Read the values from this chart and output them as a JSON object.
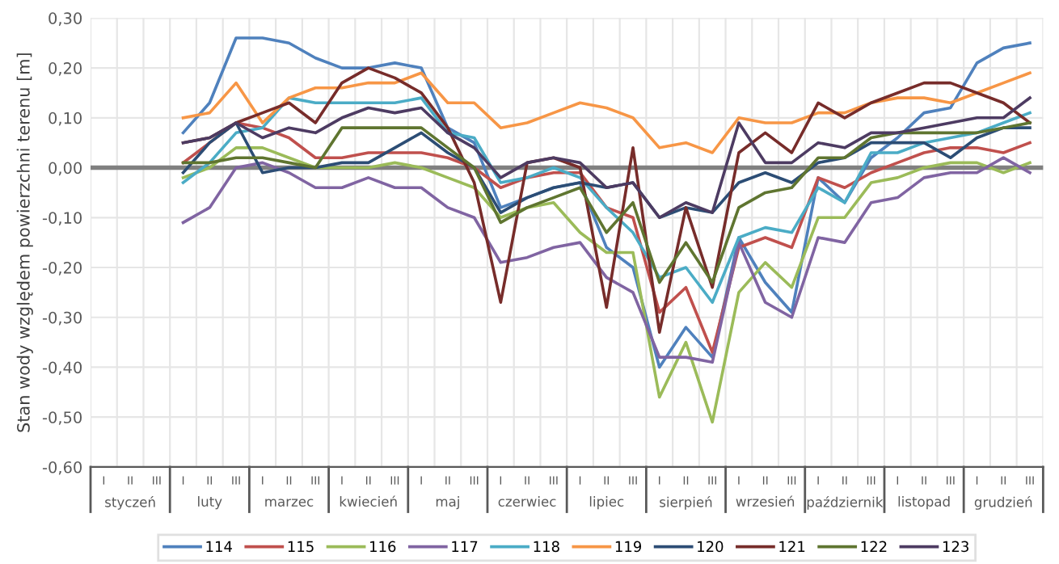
{
  "chart_data": {
    "type": "line",
    "ylabel": "Stan wody względem powierzchni terenu [m]",
    "categories": [
      "I",
      "II",
      "III",
      "I",
      "II",
      "III",
      "I",
      "II",
      "III",
      "I",
      "II",
      "III",
      "I",
      "II",
      "III",
      "I",
      "II",
      "III",
      "I",
      "II",
      "III",
      "I",
      "II",
      "III",
      "I",
      "II",
      "III",
      "I",
      "II",
      "III",
      "I",
      "II",
      "III",
      "I",
      "II",
      "III"
    ],
    "annotations": [
      "styczeń",
      "luty",
      "marzec",
      "kwiecień",
      "maj",
      "czerwiec",
      "lipiec",
      "sierpień",
      "wrzesień",
      "październik",
      "listopad",
      "grudzień"
    ],
    "series": [
      {
        "name": "114",
        "color": "#4f81bd",
        "values": [
          null,
          null,
          null,
          0.07,
          0.13,
          0.26,
          0.26,
          0.25,
          0.22,
          0.2,
          0.2,
          0.21,
          0.2,
          0.08,
          0.05,
          -0.08,
          -0.06,
          -0.04,
          -0.03,
          -0.16,
          -0.2,
          -0.4,
          -0.32,
          -0.38,
          -0.14,
          -0.23,
          -0.29,
          -0.02,
          -0.07,
          0.02,
          0.06,
          0.11,
          0.12,
          0.21,
          0.24,
          0.25
        ]
      },
      {
        "name": "115",
        "color": "#c0504d",
        "values": [
          null,
          null,
          null,
          0.01,
          0.05,
          0.09,
          0.08,
          0.06,
          0.02,
          0.02,
          0.03,
          0.03,
          0.03,
          0.02,
          0.0,
          -0.04,
          -0.02,
          -0.01,
          -0.01,
          -0.08,
          -0.1,
          -0.29,
          -0.24,
          -0.37,
          -0.16,
          -0.14,
          -0.16,
          -0.02,
          -0.04,
          -0.01,
          0.01,
          0.03,
          0.04,
          0.04,
          0.03,
          0.05
        ]
      },
      {
        "name": "116",
        "color": "#9bbb59",
        "values": [
          null,
          null,
          null,
          -0.02,
          0.0,
          0.04,
          0.04,
          0.02,
          0.0,
          0.0,
          0.0,
          0.01,
          0.0,
          -0.02,
          -0.04,
          -0.1,
          -0.08,
          -0.07,
          -0.13,
          -0.17,
          -0.17,
          -0.46,
          -0.35,
          -0.51,
          -0.25,
          -0.19,
          -0.24,
          -0.1,
          -0.1,
          -0.03,
          -0.02,
          0.0,
          0.01,
          0.01,
          -0.01,
          0.01
        ]
      },
      {
        "name": "117",
        "color": "#8064a2",
        "values": [
          null,
          null,
          null,
          -0.11,
          -0.08,
          0.0,
          0.01,
          -0.01,
          -0.04,
          -0.04,
          -0.02,
          -0.04,
          -0.04,
          -0.08,
          -0.1,
          -0.19,
          -0.18,
          -0.16,
          -0.15,
          -0.22,
          -0.25,
          -0.38,
          -0.38,
          -0.39,
          -0.15,
          -0.27,
          -0.3,
          -0.14,
          -0.15,
          -0.07,
          -0.06,
          -0.02,
          -0.01,
          -0.01,
          0.02,
          -0.01
        ]
      },
      {
        "name": "118",
        "color": "#4bacc6",
        "values": [
          null,
          null,
          null,
          -0.03,
          0.01,
          0.07,
          0.08,
          0.14,
          0.13,
          0.13,
          0.13,
          0.13,
          0.14,
          0.07,
          0.06,
          -0.03,
          -0.02,
          0.0,
          -0.02,
          -0.08,
          -0.13,
          -0.22,
          -0.2,
          -0.27,
          -0.14,
          -0.12,
          -0.13,
          -0.04,
          -0.07,
          0.03,
          0.03,
          0.05,
          0.06,
          0.07,
          0.09,
          0.11
        ]
      },
      {
        "name": "119",
        "color": "#f79646",
        "values": [
          null,
          null,
          null,
          0.1,
          0.11,
          0.17,
          0.09,
          0.14,
          0.16,
          0.16,
          0.17,
          0.17,
          0.19,
          0.13,
          0.13,
          0.08,
          0.09,
          0.11,
          0.13,
          0.12,
          0.1,
          0.04,
          0.05,
          0.03,
          0.1,
          0.09,
          0.09,
          0.11,
          0.11,
          0.13,
          0.14,
          0.14,
          0.13,
          0.15,
          0.17,
          0.19
        ]
      },
      {
        "name": "120",
        "color": "#2c4d75",
        "values": [
          null,
          null,
          null,
          -0.01,
          0.05,
          0.09,
          -0.01,
          0.0,
          0.0,
          0.01,
          0.01,
          0.04,
          0.07,
          0.03,
          0.0,
          -0.09,
          -0.06,
          -0.04,
          -0.03,
          -0.04,
          -0.03,
          -0.1,
          -0.08,
          -0.09,
          -0.03,
          -0.01,
          -0.03,
          0.01,
          0.02,
          0.05,
          0.05,
          0.05,
          0.02,
          0.06,
          0.08,
          0.08
        ]
      },
      {
        "name": "121",
        "color": "#772c2a",
        "values": [
          null,
          null,
          null,
          0.05,
          0.06,
          0.09,
          0.11,
          0.13,
          0.09,
          0.17,
          0.2,
          0.18,
          0.15,
          0.08,
          -0.03,
          -0.27,
          0.01,
          0.02,
          0.0,
          -0.28,
          0.04,
          -0.33,
          -0.08,
          -0.24,
          0.03,
          0.07,
          0.03,
          0.13,
          0.1,
          0.13,
          0.15,
          0.17,
          0.17,
          0.15,
          0.13,
          0.09
        ]
      },
      {
        "name": "122",
        "color": "#5f7530",
        "values": [
          null,
          null,
          null,
          0.01,
          0.01,
          0.02,
          0.02,
          0.01,
          0.0,
          0.08,
          0.08,
          0.08,
          0.08,
          0.04,
          0.0,
          -0.11,
          -0.08,
          -0.06,
          -0.04,
          -0.13,
          -0.07,
          -0.23,
          -0.15,
          -0.23,
          -0.08,
          -0.05,
          -0.04,
          0.02,
          0.02,
          0.06,
          0.07,
          0.07,
          0.07,
          0.07,
          0.08,
          0.09
        ]
      },
      {
        "name": "123",
        "color": "#4d3b62",
        "values": [
          null,
          null,
          null,
          0.05,
          0.06,
          0.09,
          0.06,
          0.08,
          0.07,
          0.1,
          0.12,
          0.11,
          0.12,
          0.07,
          0.04,
          -0.02,
          0.01,
          0.02,
          0.01,
          -0.04,
          -0.03,
          -0.1,
          -0.07,
          -0.09,
          0.09,
          0.01,
          0.01,
          0.05,
          0.04,
          0.07,
          0.07,
          0.08,
          0.09,
          0.1,
          0.1,
          0.14
        ]
      }
    ],
    "ylim": [
      -0.6,
      0.3
    ],
    "yticks": [
      {
        "value": -0.6,
        "label": "-0,60"
      },
      {
        "value": -0.5,
        "label": "-0,50"
      },
      {
        "value": -0.4,
        "label": "-0,40"
      },
      {
        "value": -0.3,
        "label": "-0,30"
      },
      {
        "value": -0.2,
        "label": "-0,20"
      },
      {
        "value": -0.1,
        "label": "-0,10"
      },
      {
        "value": 0,
        "label": "0,00"
      },
      {
        "value": 0.1,
        "label": "0,10"
      },
      {
        "value": 0.2,
        "label": "0,20"
      },
      {
        "value": 0.3,
        "label": "0,30"
      }
    ],
    "ref_lines": [
      {
        "axis": "y",
        "value": 0,
        "color": "#808080"
      }
    ],
    "grid": true,
    "legend": "bottom",
    "marker": "none",
    "line_style": "solid"
  }
}
